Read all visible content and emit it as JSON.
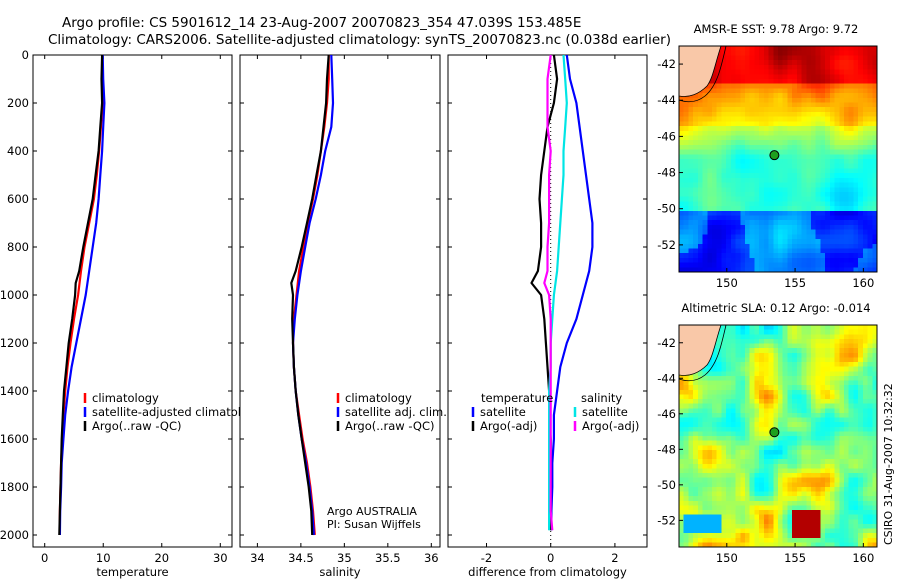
{
  "header": {
    "line1": "Argo profile: CS 5901612_14 23-Aug-2007 20070823_354 47.039S 153.485E",
    "line2": "Climatology: CARS2006. Satellite-adjusted climatology: synTS_20070823.nc (0.038d earlier)"
  },
  "side_label": "CSIRO 31-Aug-2007 10:32:32",
  "colors": {
    "climatology": "#ff0000",
    "satellite": "#0000ff",
    "argo": "#000000",
    "salinity_sat": "#00e5e5",
    "salinity_argo": "#ff00ff",
    "land": "#f9c8a8",
    "float_marker": "#1ea01e"
  },
  "chart_data": [
    {
      "type": "line",
      "id": "temperature",
      "xlabel": "temperature",
      "ylabel": "",
      "xlim": [
        -2,
        32
      ],
      "ylim": [
        2050,
        0
      ],
      "xticks": [
        0,
        10,
        20,
        30
      ],
      "yticks": [
        0,
        200,
        400,
        600,
        800,
        1000,
        1200,
        1400,
        1600,
        1800,
        2000
      ],
      "legend_position": "bottom-right",
      "series": [
        {
          "name": "climatology",
          "color": "#ff0000",
          "points": [
            [
              9.8,
              0
            ],
            [
              9.8,
              100
            ],
            [
              9.9,
              200
            ],
            [
              9.6,
              300
            ],
            [
              9.3,
              400
            ],
            [
              8.9,
              500
            ],
            [
              8.4,
              600
            ],
            [
              7.6,
              700
            ],
            [
              6.8,
              800
            ],
            [
              6.2,
              900
            ],
            [
              5.7,
              1000
            ],
            [
              5.0,
              1100
            ],
            [
              4.4,
              1200
            ],
            [
              3.9,
              1300
            ],
            [
              3.5,
              1400
            ],
            [
              3.2,
              1500
            ],
            [
              3.0,
              1600
            ],
            [
              2.8,
              1700
            ],
            [
              2.7,
              1800
            ],
            [
              2.6,
              1900
            ],
            [
              2.55,
              2000
            ]
          ]
        },
        {
          "name": "satellite-adjusted climatology",
          "color": "#0000ff",
          "points": [
            [
              9.9,
              0
            ],
            [
              10.0,
              100
            ],
            [
              10.2,
              200
            ],
            [
              10.0,
              300
            ],
            [
              9.8,
              400
            ],
            [
              9.5,
              500
            ],
            [
              9.2,
              600
            ],
            [
              8.8,
              700
            ],
            [
              8.2,
              800
            ],
            [
              7.6,
              900
            ],
            [
              7.0,
              1000
            ],
            [
              6.2,
              1100
            ],
            [
              5.4,
              1200
            ],
            [
              4.6,
              1300
            ],
            [
              4.0,
              1400
            ],
            [
              3.5,
              1500
            ],
            [
              3.2,
              1600
            ],
            [
              2.9,
              1700
            ],
            [
              2.8,
              1800
            ],
            [
              2.65,
              1900
            ],
            [
              2.6,
              2000
            ]
          ]
        },
        {
          "name": "Argo(..raw -QC)",
          "color": "#000000",
          "points": [
            [
              9.8,
              0
            ],
            [
              9.7,
              100
            ],
            [
              9.8,
              200
            ],
            [
              9.5,
              300
            ],
            [
              9.2,
              400
            ],
            [
              8.7,
              500
            ],
            [
              8.2,
              600
            ],
            [
              7.4,
              700
            ],
            [
              6.6,
              800
            ],
            [
              5.9,
              900
            ],
            [
              5.3,
              950
            ],
            [
              5.2,
              1000
            ],
            [
              4.7,
              1100
            ],
            [
              4.1,
              1200
            ],
            [
              3.7,
              1300
            ],
            [
              3.3,
              1400
            ],
            [
              3.1,
              1500
            ],
            [
              2.9,
              1600
            ],
            [
              2.8,
              1700
            ],
            [
              2.7,
              1800
            ],
            [
              2.6,
              1900
            ],
            [
              2.5,
              2000
            ]
          ]
        }
      ]
    },
    {
      "type": "line",
      "id": "salinity",
      "xlabel": "salinity",
      "ylabel": "",
      "xlim": [
        33.8,
        36.1
      ],
      "ylim": [
        2050,
        0
      ],
      "xticks": [
        34,
        34.5,
        35,
        35.5,
        36
      ],
      "legend_position": "bottom-right",
      "annotation": [
        "Argo AUSTRALIA",
        "PI: Susan Wijffels"
      ],
      "series": [
        {
          "name": "climatology",
          "color": "#ff0000",
          "points": [
            [
              34.82,
              0
            ],
            [
              34.82,
              100
            ],
            [
              34.8,
              200
            ],
            [
              34.77,
              300
            ],
            [
              34.73,
              400
            ],
            [
              34.69,
              500
            ],
            [
              34.64,
              600
            ],
            [
              34.58,
              700
            ],
            [
              34.53,
              800
            ],
            [
              34.48,
              900
            ],
            [
              34.45,
              1000
            ],
            [
              34.42,
              1100
            ],
            [
              34.41,
              1200
            ],
            [
              34.42,
              1300
            ],
            [
              34.44,
              1400
            ],
            [
              34.48,
              1500
            ],
            [
              34.52,
              1600
            ],
            [
              34.57,
              1700
            ],
            [
              34.61,
              1800
            ],
            [
              34.64,
              1900
            ],
            [
              34.66,
              2000
            ]
          ]
        },
        {
          "name": "satellite adj. clim.",
          "color": "#0000ff",
          "points": [
            [
              34.85,
              0
            ],
            [
              34.86,
              100
            ],
            [
              34.87,
              200
            ],
            [
              34.85,
              300
            ],
            [
              34.78,
              400
            ],
            [
              34.73,
              500
            ],
            [
              34.67,
              600
            ],
            [
              34.6,
              700
            ],
            [
              34.55,
              800
            ],
            [
              34.5,
              900
            ],
            [
              34.46,
              1000
            ],
            [
              34.43,
              1100
            ],
            [
              34.41,
              1200
            ],
            [
              34.42,
              1300
            ],
            [
              34.44,
              1400
            ],
            [
              34.47,
              1500
            ],
            [
              34.51,
              1600
            ],
            [
              34.56,
              1700
            ],
            [
              34.6,
              1800
            ],
            [
              34.63,
              1900
            ],
            [
              34.65,
              2000
            ]
          ]
        },
        {
          "name": "Argo(..raw -QC)",
          "color": "#000000",
          "points": [
            [
              34.82,
              0
            ],
            [
              34.8,
              100
            ],
            [
              34.79,
              200
            ],
            [
              34.76,
              300
            ],
            [
              34.73,
              400
            ],
            [
              34.68,
              500
            ],
            [
              34.63,
              600
            ],
            [
              34.57,
              700
            ],
            [
              34.51,
              800
            ],
            [
              34.44,
              900
            ],
            [
              34.39,
              950
            ],
            [
              34.41,
              1000
            ],
            [
              34.4,
              1100
            ],
            [
              34.41,
              1200
            ],
            [
              34.42,
              1300
            ],
            [
              34.44,
              1400
            ],
            [
              34.47,
              1500
            ],
            [
              34.51,
              1600
            ],
            [
              34.55,
              1700
            ],
            [
              34.59,
              1800
            ],
            [
              34.62,
              1900
            ],
            [
              34.63,
              2000
            ]
          ]
        }
      ]
    },
    {
      "type": "line",
      "id": "difference",
      "xlabel": "difference from climatology",
      "ylabel": "",
      "xlim": [
        -3.2,
        3.0
      ],
      "ylim": [
        2050,
        0
      ],
      "xticks": [
        -2,
        0,
        2
      ],
      "legend_position": "bottom",
      "legend_groups": [
        {
          "title": "temperature",
          "entries": [
            "satellite",
            "Argo(-adj)"
          ]
        },
        {
          "title": "salinity",
          "entries": [
            "satellite",
            "Argo(-adj)"
          ]
        }
      ],
      "series": [
        {
          "name": "satellite",
          "group": "temperature",
          "color": "#0000ff",
          "points": [
            [
              0.5,
              0
            ],
            [
              0.6,
              100
            ],
            [
              0.8,
              200
            ],
            [
              0.9,
              300
            ],
            [
              1.0,
              400
            ],
            [
              1.1,
              500
            ],
            [
              1.2,
              600
            ],
            [
              1.3,
              700
            ],
            [
              1.3,
              800
            ],
            [
              1.2,
              900
            ],
            [
              1.0,
              1000
            ],
            [
              0.8,
              1100
            ],
            [
              0.5,
              1200
            ],
            [
              0.3,
              1300
            ],
            [
              0.2,
              1400
            ],
            [
              0.1,
              1500
            ],
            [
              0.1,
              1600
            ],
            [
              0.05,
              1700
            ],
            [
              0.05,
              1800
            ],
            [
              0.02,
              1900
            ],
            [
              0.02,
              1980
            ]
          ]
        },
        {
          "name": "Argo(-adj)",
          "group": "temperature",
          "color": "#000000",
          "points": [
            [
              0.1,
              0
            ],
            [
              0.2,
              100
            ],
            [
              0.1,
              200
            ],
            [
              -0.1,
              300
            ],
            [
              -0.2,
              400
            ],
            [
              -0.3,
              500
            ],
            [
              -0.35,
              600
            ],
            [
              -0.3,
              700
            ],
            [
              -0.3,
              800
            ],
            [
              -0.4,
              900
            ],
            [
              -0.6,
              950
            ],
            [
              -0.3,
              1000
            ],
            [
              -0.2,
              1100
            ],
            [
              -0.15,
              1200
            ],
            [
              -0.1,
              1300
            ],
            [
              -0.05,
              1400
            ],
            [
              -0.05,
              1500
            ],
            [
              0.0,
              1600
            ],
            [
              0.0,
              1700
            ],
            [
              0.0,
              1800
            ],
            [
              0.0,
              1900
            ],
            [
              0.0,
              1980
            ]
          ]
        },
        {
          "name": "satellite",
          "group": "salinity",
          "color": "#00e5e5",
          "points": [
            [
              0.4,
              0
            ],
            [
              0.45,
              100
            ],
            [
              0.5,
              200
            ],
            [
              0.45,
              300
            ],
            [
              0.4,
              400
            ],
            [
              0.4,
              500
            ],
            [
              0.35,
              600
            ],
            [
              0.3,
              700
            ],
            [
              0.25,
              800
            ],
            [
              0.2,
              900
            ],
            [
              0.1,
              1000
            ],
            [
              0.05,
              1100
            ],
            [
              0.0,
              1200
            ],
            [
              0.0,
              1300
            ],
            [
              -0.05,
              1400
            ],
            [
              -0.05,
              1500
            ],
            [
              -0.05,
              1600
            ],
            [
              -0.05,
              1700
            ],
            [
              -0.05,
              1800
            ],
            [
              -0.05,
              1900
            ],
            [
              -0.05,
              1980
            ]
          ]
        },
        {
          "name": "Argo(-adj)",
          "group": "salinity",
          "color": "#ff00ff",
          "points": [
            [
              0.0,
              0
            ],
            [
              -0.1,
              100
            ],
            [
              -0.1,
              200
            ],
            [
              -0.1,
              300
            ],
            [
              0.0,
              400
            ],
            [
              -0.05,
              500
            ],
            [
              -0.05,
              600
            ],
            [
              -0.05,
              700
            ],
            [
              -0.1,
              800
            ],
            [
              -0.1,
              900
            ],
            [
              -0.2,
              950
            ],
            [
              -0.05,
              1000
            ],
            [
              0.0,
              1100
            ],
            [
              0.0,
              1200
            ],
            [
              0.0,
              1300
            ],
            [
              0.0,
              1400
            ],
            [
              0.0,
              1500
            ],
            [
              0.0,
              1600
            ],
            [
              0.0,
              1700
            ],
            [
              0.0,
              1800
            ],
            [
              0.0,
              1900
            ],
            [
              0.05,
              1980
            ]
          ]
        }
      ]
    },
    {
      "type": "heatmap",
      "id": "sst_map",
      "title": "AMSR-E SST: 9.78 Argo: 9.72",
      "xlim": [
        146.5,
        161
      ],
      "ylim": [
        -53.5,
        -41
      ],
      "xticks": [
        150,
        155,
        160
      ],
      "yticks": [
        -42,
        -44,
        -46,
        -48,
        -50,
        -52
      ],
      "marker": {
        "lon": 153.485,
        "lat": -47.039
      }
    },
    {
      "type": "heatmap",
      "id": "sla_map",
      "title": "Altimetric SLA: 0.12 Argo: -0.014",
      "xlim": [
        146.5,
        161
      ],
      "ylim": [
        -53.5,
        -41
      ],
      "xticks": [
        150,
        155,
        160
      ],
      "yticks": [
        -42,
        -44,
        -46,
        -48,
        -50,
        -52
      ],
      "marker": {
        "lon": 153.485,
        "lat": -47.039
      }
    }
  ]
}
